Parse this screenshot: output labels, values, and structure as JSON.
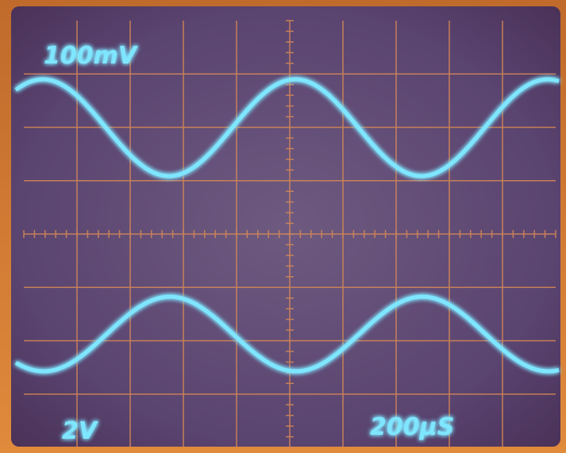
{
  "screen": {
    "ch1_scale": "100mV",
    "ch2_scale": "2V",
    "timebase": "200µS"
  }
}
